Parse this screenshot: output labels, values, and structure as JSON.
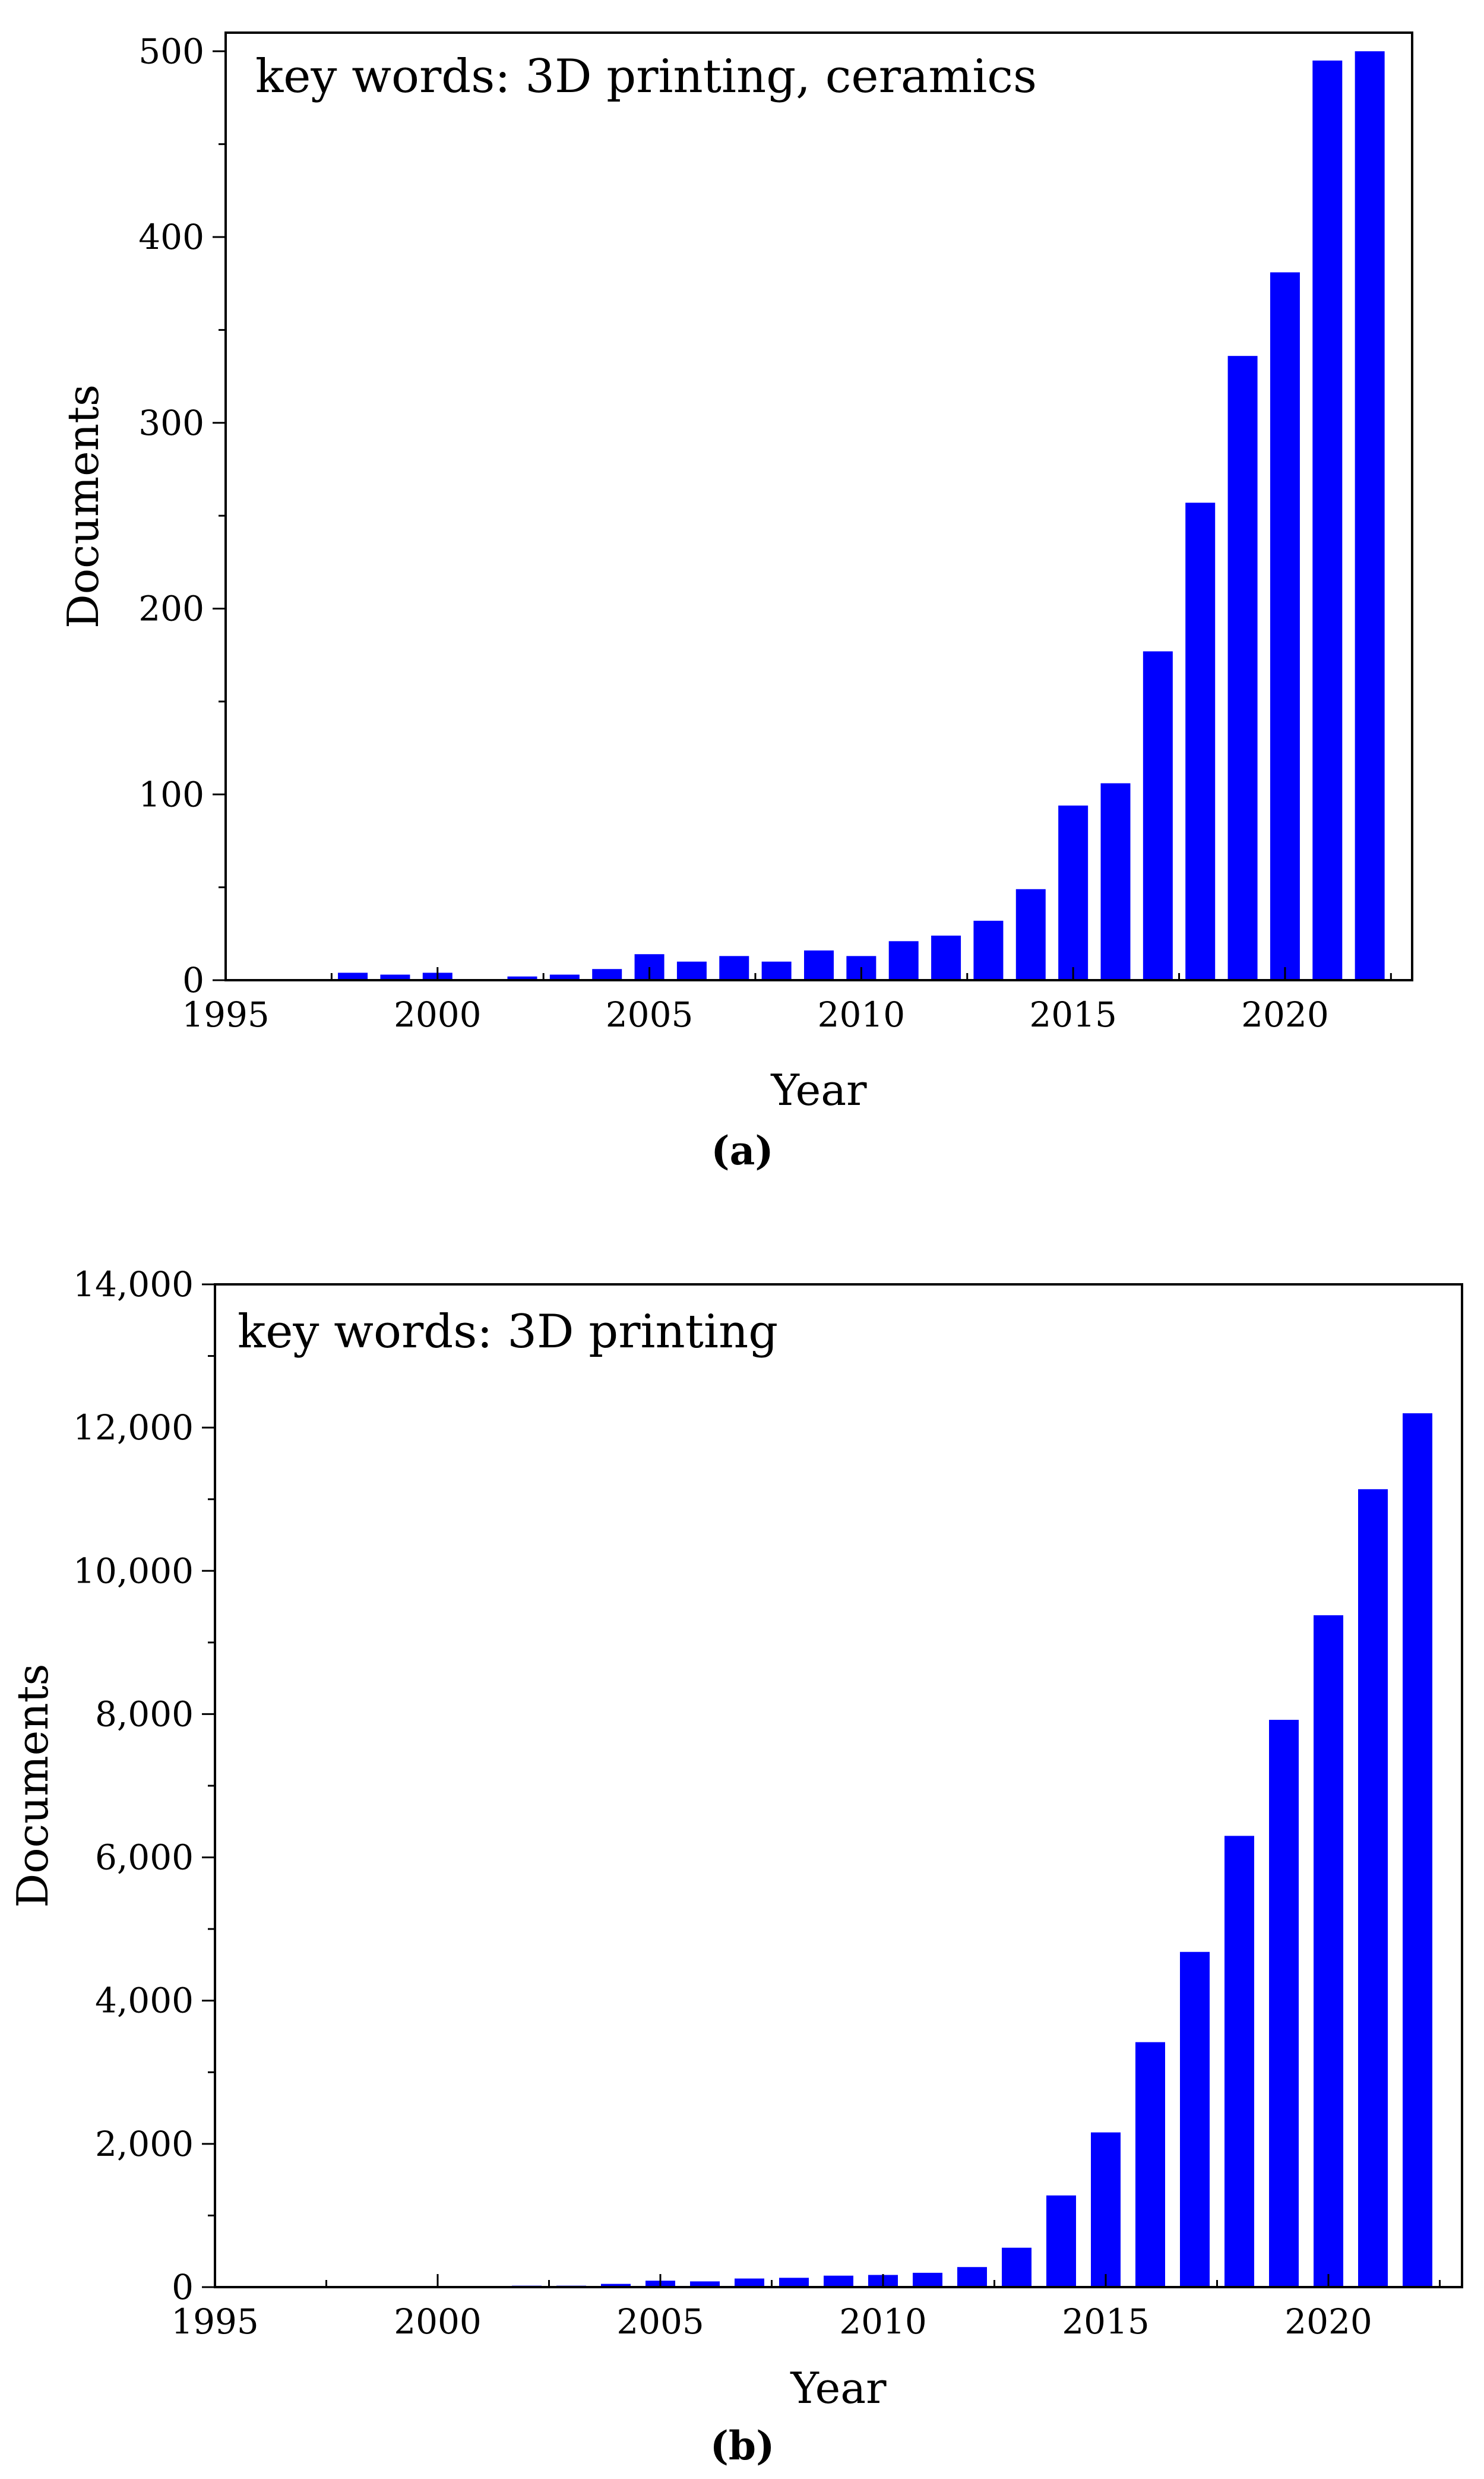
{
  "colors": {
    "bar": "#0000ff",
    "axis": "#000000"
  },
  "chart_data": [
    {
      "panel_label": "(a)",
      "type": "bar",
      "title": "",
      "annotation": "key words: 3D printing, ceramics",
      "xlabel": "Year",
      "ylabel": "Documents",
      "xlim": [
        1995,
        2023
      ],
      "ylim": [
        0,
        510
      ],
      "xticks": [
        1995,
        2000,
        2005,
        2010,
        2015,
        2020
      ],
      "xtick_labels": [
        "1995",
        "2000",
        "2005",
        "2010",
        "2015",
        "2020"
      ],
      "yticks": [
        0,
        100,
        200,
        300,
        400,
        500
      ],
      "ytick_labels": [
        "0",
        "100",
        "200",
        "300",
        "400",
        "500"
      ],
      "x": [
        1998,
        1999,
        2000,
        2001,
        2002,
        2003,
        2004,
        2005,
        2006,
        2007,
        2008,
        2009,
        2010,
        2011,
        2012,
        2013,
        2014,
        2015,
        2016,
        2017,
        2018,
        2019,
        2020,
        2021,
        2022
      ],
      "values": [
        4,
        3,
        4,
        0,
        2,
        3,
        6,
        14,
        10,
        13,
        10,
        16,
        13,
        21,
        24,
        32,
        49,
        94,
        106,
        177,
        257,
        336,
        381,
        495,
        500
      ]
    },
    {
      "panel_label": "(b)",
      "type": "bar",
      "title": "",
      "annotation": "key words: 3D printing",
      "xlabel": "Year",
      "ylabel": "Documents",
      "xlim": [
        1995,
        2023
      ],
      "ylim": [
        0,
        14000
      ],
      "xticks": [
        1995,
        2000,
        2005,
        2010,
        2015,
        2020
      ],
      "xtick_labels": [
        "1995",
        "2000",
        "2005",
        "2010",
        "2015",
        "2020"
      ],
      "yticks": [
        0,
        2000,
        4000,
        6000,
        8000,
        10000,
        12000,
        14000
      ],
      "ytick_labels": [
        "0",
        "2,000",
        "4,000",
        "6,000",
        "8,000",
        "10,000",
        "12,000",
        "14,000"
      ],
      "x": [
        1996,
        1997,
        1998,
        1999,
        2000,
        2001,
        2002,
        2003,
        2004,
        2005,
        2006,
        2007,
        2008,
        2009,
        2010,
        2011,
        2012,
        2013,
        2014,
        2015,
        2016,
        2017,
        2018,
        2019,
        2020,
        2021,
        2022
      ],
      "values": [
        5,
        5,
        10,
        10,
        15,
        15,
        20,
        20,
        45,
        90,
        80,
        120,
        130,
        160,
        170,
        200,
        280,
        550,
        1280,
        2160,
        3420,
        4680,
        6300,
        7920,
        9380,
        11140,
        12200
      ]
    }
  ]
}
